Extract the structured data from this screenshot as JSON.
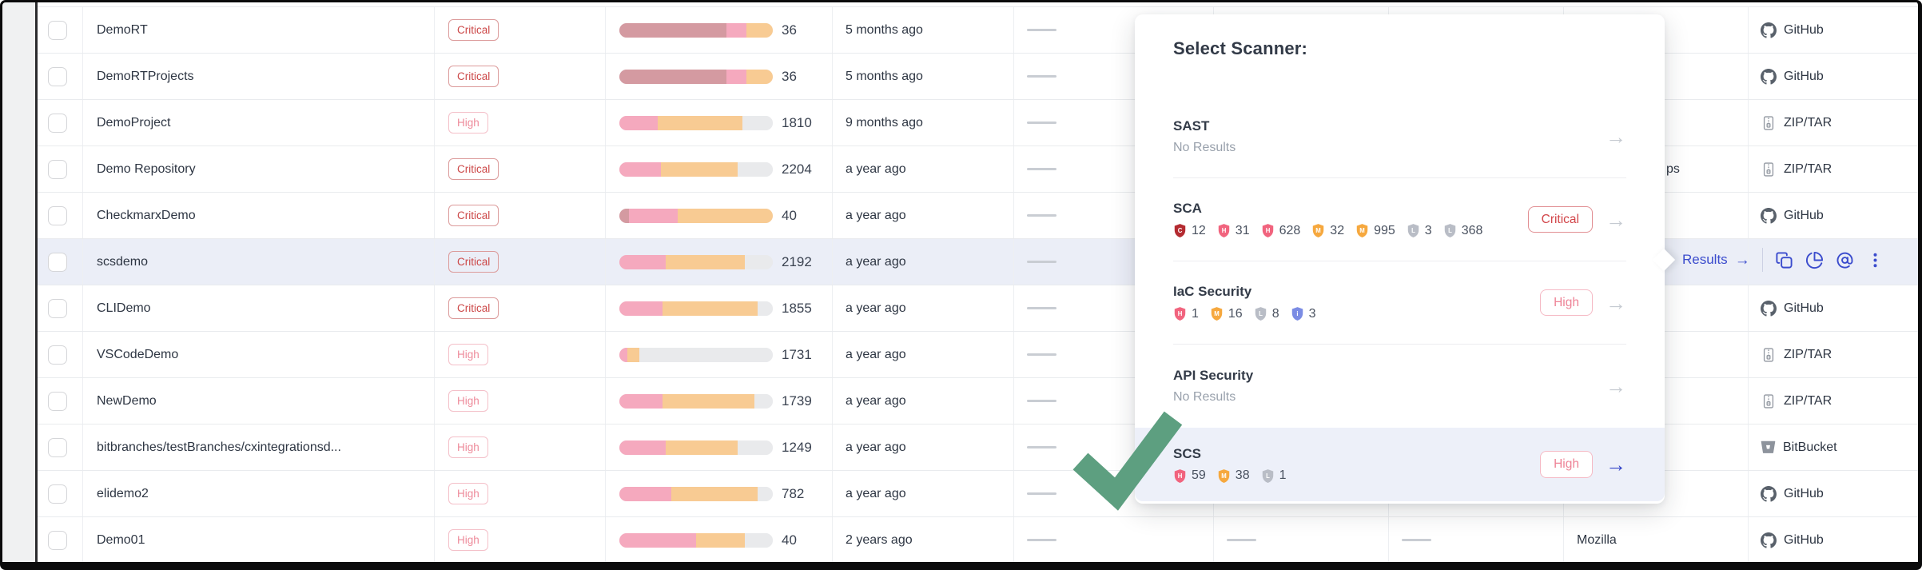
{
  "popover": {
    "title": "Select Scanner:",
    "severity_colors": {
      "C": "#b42b31",
      "H": "#f1647e",
      "M": "#f6a83e",
      "L": "#b9bdc6",
      "i": "#7b8ce4"
    },
    "items": [
      {
        "name": "SAST",
        "sub": "No Results",
        "counts": [],
        "badge": null,
        "selected": false
      },
      {
        "name": "SCA",
        "sub": null,
        "counts": [
          [
            "C",
            "12"
          ],
          [
            "H",
            "31"
          ],
          [
            "H",
            "628"
          ],
          [
            "M",
            "32"
          ],
          [
            "M",
            "995"
          ],
          [
            "L",
            "3"
          ],
          [
            "L",
            "368"
          ]
        ],
        "badge": "Critical",
        "badge_type": "critical",
        "selected": false
      },
      {
        "name": "IaC Security",
        "sub": null,
        "counts": [
          [
            "H",
            "1"
          ],
          [
            "M",
            "16"
          ],
          [
            "L",
            "8"
          ],
          [
            "i",
            "3"
          ]
        ],
        "badge": "High",
        "badge_type": "high",
        "selected": false
      },
      {
        "name": "API Security",
        "sub": "No Results",
        "counts": [],
        "badge": null,
        "selected": false
      },
      {
        "name": "SCS",
        "sub": null,
        "counts": [
          [
            "H",
            "59"
          ],
          [
            "M",
            "38"
          ],
          [
            "L",
            "1"
          ]
        ],
        "badge": "High",
        "badge_type": "high",
        "selected": true
      }
    ],
    "arrow_glyph": "→"
  },
  "row_actions": {
    "results_label": "Results",
    "arrow_glyph": "→",
    "icons": [
      "copy-icon",
      "pie-chart-icon",
      "risk-swirl-icon",
      "kebab-menu-icon"
    ]
  },
  "table": {
    "rows": [
      {
        "name": "DemoRT",
        "severity": "Critical",
        "count": "36",
        "age": "5 months ago",
        "bar": [
          [
            "crit",
            70
          ],
          [
            "high",
            13
          ],
          [
            "med",
            17
          ]
        ],
        "source": "GitHub",
        "source_icon": "github"
      },
      {
        "name": "DemoRTProjects",
        "severity": "Critical",
        "count": "36",
        "age": "5 months ago",
        "bar": [
          [
            "crit",
            70
          ],
          [
            "high",
            13
          ],
          [
            "med",
            17
          ]
        ],
        "source": "GitHub",
        "source_icon": "github"
      },
      {
        "name": "DemoProject",
        "severity": "High",
        "count": "1810",
        "age": "9 months ago",
        "bar": [
          [
            "high",
            25
          ],
          [
            "med",
            55
          ],
          [
            "low",
            20
          ]
        ],
        "source": "ZIP/TAR",
        "source_icon": "zip"
      },
      {
        "name": "Demo Repository",
        "severity": "Critical",
        "count": "2204",
        "age": "a year ago",
        "bar": [
          [
            "high",
            27
          ],
          [
            "med",
            50
          ],
          [
            "low",
            23
          ]
        ],
        "source": "ZIP/TAR",
        "source_icon": "zip",
        "group_fragment": "ps"
      },
      {
        "name": "CheckmarxDemo",
        "severity": "Critical",
        "count": "40",
        "age": "a year ago",
        "bar": [
          [
            "crit",
            6
          ],
          [
            "high",
            32
          ],
          [
            "med",
            62
          ]
        ],
        "source": "GitHub",
        "source_icon": "github"
      },
      {
        "name": "scsdemo",
        "severity": "Critical",
        "count": "2192",
        "age": "a year ago",
        "bar": [
          [
            "high",
            30
          ],
          [
            "med",
            52
          ],
          [
            "low",
            18
          ]
        ],
        "source": null,
        "source_icon": null,
        "selected": true
      },
      {
        "name": "CLIDemo",
        "severity": "Critical",
        "count": "1855",
        "age": "a year ago",
        "bar": [
          [
            "high",
            28
          ],
          [
            "med",
            62
          ],
          [
            "low",
            10
          ]
        ],
        "source": "GitHub",
        "source_icon": "github"
      },
      {
        "name": "VSCodeDemo",
        "severity": "High",
        "count": "1731",
        "age": "a year ago",
        "bar": [
          [
            "high",
            5
          ],
          [
            "med",
            8
          ],
          [
            "low",
            87
          ]
        ],
        "source": "ZIP/TAR",
        "source_icon": "zip"
      },
      {
        "name": "NewDemo",
        "severity": "High",
        "count": "1739",
        "age": "a year ago",
        "bar": [
          [
            "high",
            28
          ],
          [
            "med",
            60
          ],
          [
            "low",
            12
          ]
        ],
        "source": "ZIP/TAR",
        "source_icon": "zip"
      },
      {
        "name": "bitbranches/testBranches/cxintegrationsd...",
        "severity": "High",
        "count": "1249",
        "age": "a year ago",
        "bar": [
          [
            "high",
            30
          ],
          [
            "med",
            47
          ],
          [
            "low",
            23
          ]
        ],
        "source": "BitBucket",
        "source_icon": "bitbucket"
      },
      {
        "name": "elidemo2",
        "severity": "High",
        "count": "782",
        "age": "a year ago",
        "bar": [
          [
            "high",
            34
          ],
          [
            "med",
            56
          ],
          [
            "low",
            10
          ]
        ],
        "source": "GitHub",
        "source_icon": "github"
      },
      {
        "name": "Demo01",
        "severity": "High",
        "count": "40",
        "age": "2 years ago",
        "bar": [
          [
            "high",
            50
          ],
          [
            "med",
            32
          ],
          [
            "low",
            18
          ]
        ],
        "source": "GitHub",
        "source_icon": "github",
        "group": "Mozilla",
        "extra_dashes": true
      }
    ]
  },
  "colors": {
    "bar": {
      "crit": "#d49aa1",
      "high": "#f5a9be",
      "med": "#f8cb93",
      "low": "#e9eaec"
    },
    "accent_indigo": "#3b4ccd",
    "row_highlight": "#ebeef7",
    "check_green": "#5d9f80",
    "critical_red": "#cc4747",
    "high_pink": "#ee8b9b"
  }
}
